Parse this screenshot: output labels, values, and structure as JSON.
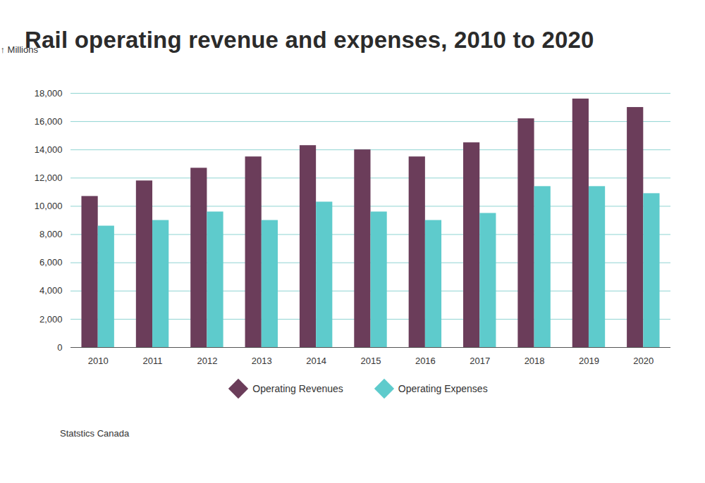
{
  "chart_data": {
    "type": "bar",
    "title": "Rail operating revenue and expenses, 2010 to 2020",
    "y_label": "Millions",
    "source": "Statstics Canada",
    "categories": [
      "2010",
      "2011",
      "2012",
      "2013",
      "2014",
      "2015",
      "2016",
      "2017",
      "2018",
      "2019",
      "2020"
    ],
    "series": [
      {
        "name": "Operating Revenues",
        "color": "#6b3d5a",
        "values": [
          10700,
          11800,
          12700,
          13500,
          14300,
          14000,
          13500,
          14500,
          16200,
          17600,
          17000
        ]
      },
      {
        "name": "Operating Expenses",
        "color": "#5ecbcc",
        "values": [
          8600,
          9000,
          9600,
          9000,
          10300,
          9600,
          9000,
          9500,
          11400,
          11400,
          10900
        ]
      }
    ],
    "ylim": [
      0,
      18000
    ],
    "yticks": [
      0,
      {
        "value": 2000,
        "label": "2,000"
      },
      {
        "value": 4000,
        "label": "4,000"
      },
      {
        "value": 6000,
        "label": "6,000"
      },
      {
        "value": 8000,
        "label": "8,000"
      },
      {
        "value": 10000,
        "label": "10,000"
      },
      {
        "value": 12000,
        "label": "12,000"
      },
      {
        "value": 14000,
        "label": "14,000"
      },
      {
        "value": 16000,
        "label": "16,000"
      },
      {
        "value": 18000,
        "label": "18,000"
      }
    ],
    "grid": true,
    "legend": "bottom"
  }
}
